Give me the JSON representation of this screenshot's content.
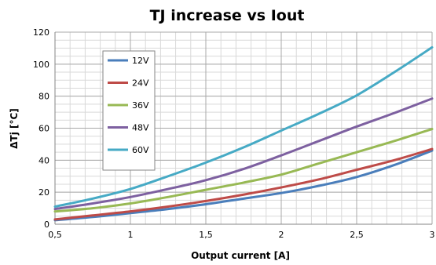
{
  "chart_data": {
    "type": "line",
    "title": "TJ increase vs Iout",
    "xlabel": "Output current [A]",
    "ylabel": "ΔTj [°C]",
    "xlim": [
      0.5,
      3
    ],
    "ylim": [
      0,
      120
    ],
    "x_ticks": [
      "0,5",
      "1",
      "1,5",
      "2",
      "2,5",
      "3"
    ],
    "x_tick_values": [
      0.5,
      1,
      1.5,
      2,
      2.5,
      3
    ],
    "y_ticks": [
      "0",
      "20",
      "40",
      "60",
      "80",
      "100",
      "120"
    ],
    "y_tick_values": [
      0,
      20,
      40,
      60,
      80,
      100,
      120
    ],
    "grid": true,
    "legend_position": "top-left",
    "x": [
      0.5,
      0.75,
      1.0,
      1.25,
      1.5,
      1.75,
      2.0,
      2.25,
      2.5,
      2.75,
      3.0
    ],
    "series": [
      {
        "name": "12V",
        "color": "#4a7ebb",
        "values": [
          2.5,
          4.5,
          7,
          9.5,
          12.5,
          16,
          19.5,
          24,
          29.5,
          37,
          46
        ]
      },
      {
        "name": "24V",
        "color": "#be4b48",
        "values": [
          3,
          5.5,
          8,
          11,
          14.5,
          18.5,
          23,
          28,
          34,
          40,
          47
        ]
      },
      {
        "name": "36V",
        "color": "#98b954",
        "values": [
          8,
          10,
          13,
          17,
          21.5,
          26,
          31,
          38,
          45,
          52,
          59.5
        ]
      },
      {
        "name": "48V",
        "color": "#7d60a0",
        "values": [
          9.5,
          13,
          17,
          22,
          27.5,
          34.5,
          43,
          52,
          61,
          69.5,
          78.5
        ]
      },
      {
        "name": "60V",
        "color": "#46aac5",
        "values": [
          11,
          16,
          22,
          30,
          38.5,
          48,
          58.5,
          69,
          80.5,
          95,
          110.5
        ]
      }
    ]
  }
}
